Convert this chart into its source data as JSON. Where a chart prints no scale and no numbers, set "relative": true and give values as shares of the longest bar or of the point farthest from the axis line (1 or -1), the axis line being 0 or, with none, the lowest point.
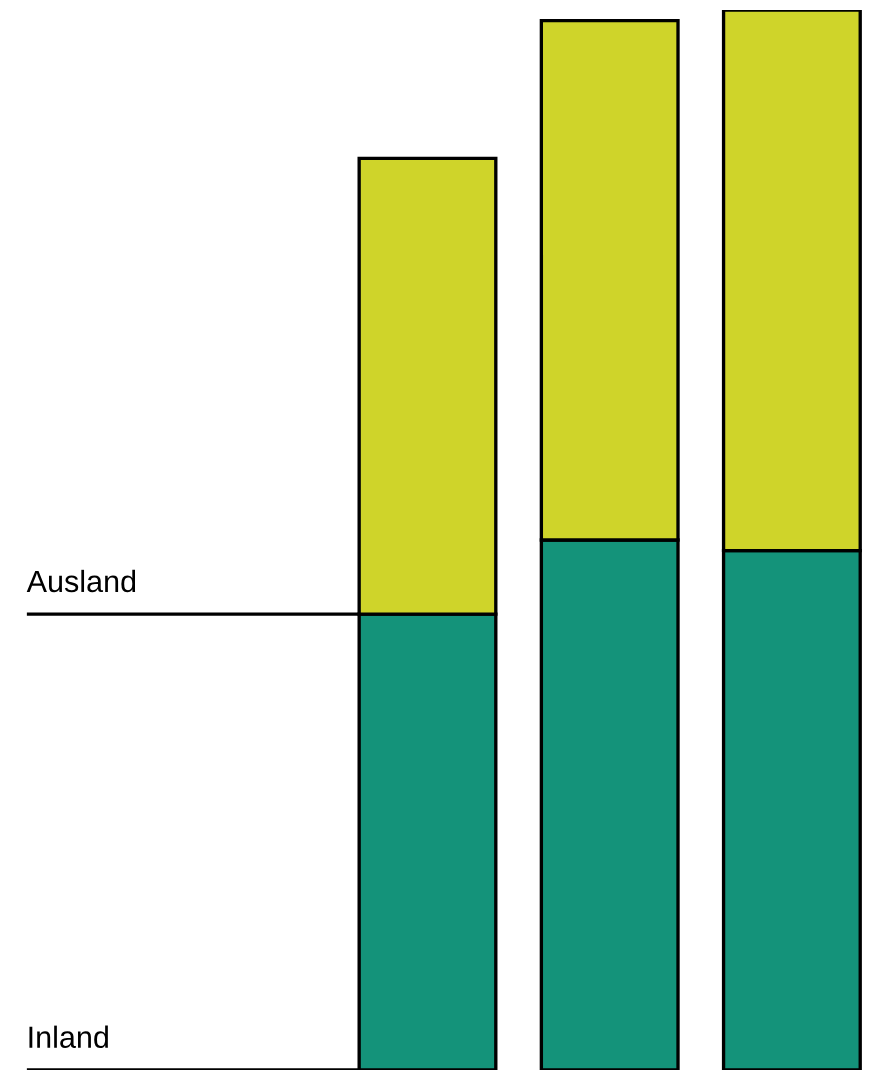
{
  "chart_data": {
    "type": "bar",
    "stacked": true,
    "relative": true,
    "categories": [
      null,
      null,
      null
    ],
    "series": [
      {
        "name": "Inland",
        "color": "#14937a",
        "values": [
          0.43,
          0.5,
          0.49
        ]
      },
      {
        "name": "Ausland",
        "color": "#cfd42a",
        "values": [
          0.43,
          0.49,
          0.51
        ]
      }
    ]
  }
}
